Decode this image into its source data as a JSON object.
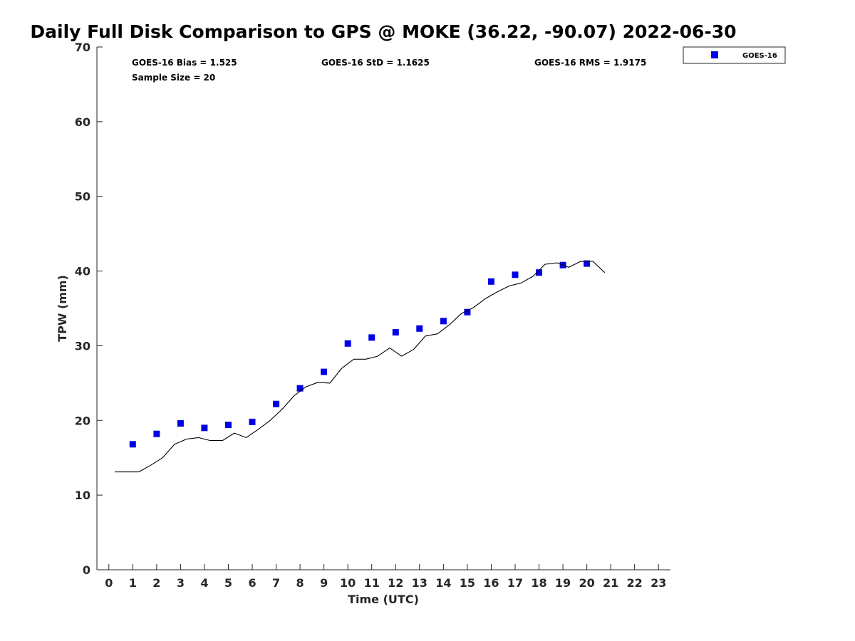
{
  "chart_data": {
    "type": "scatter",
    "title": "Daily Full Disk Comparison to GPS @ MOKE (36.22, -90.07) 2022-06-30",
    "xlabel": "Time (UTC)",
    "ylabel": "TPW (mm)",
    "xlim": [
      -0.5,
      23.5
    ],
    "ylim": [
      0,
      70
    ],
    "xticks": [
      0,
      1,
      2,
      3,
      4,
      5,
      6,
      7,
      8,
      9,
      10,
      11,
      12,
      13,
      14,
      15,
      16,
      17,
      18,
      19,
      20,
      21,
      22,
      23
    ],
    "yticks": [
      0,
      10,
      20,
      30,
      40,
      50,
      60,
      70
    ],
    "grid": false,
    "legend_position": "top-right, outside plot",
    "stats": {
      "bias": "GOES-16 Bias = 1.525",
      "std": "GOES-16 StD = 1.1625",
      "rms": "GOES-16 RMS = 1.9175",
      "sample": "Sample Size = 20"
    },
    "series": [
      {
        "name": "GOES-16",
        "marker": "square",
        "color": "#0000e6",
        "x": [
          1,
          2,
          3,
          4,
          5,
          6,
          7,
          8,
          9,
          10,
          11,
          12,
          13,
          14,
          15,
          16,
          17,
          18,
          19,
          20
        ],
        "y": [
          16.8,
          18.2,
          19.6,
          19.0,
          19.4,
          19.8,
          22.2,
          24.3,
          26.5,
          30.3,
          31.1,
          31.8,
          32.3,
          33.3,
          34.5,
          38.6,
          39.5,
          39.8,
          40.8,
          41.0
        ]
      },
      {
        "marker": "line",
        "color": "#000000",
        "x": [
          0.25,
          0.75,
          1.25,
          1.75,
          2.25,
          2.75,
          3.25,
          3.75,
          4.25,
          4.75,
          5.25,
          5.75,
          6.25,
          6.75,
          7.25,
          7.75,
          8.25,
          8.75,
          9.25,
          9.75,
          10.25,
          10.75,
          11.25,
          11.75,
          12.25,
          12.75,
          13.25,
          13.75,
          14.25,
          14.75,
          15.25,
          15.75,
          16.25,
          16.75,
          17.25,
          17.75,
          18.25,
          18.75,
          19.25,
          19.75,
          20.25,
          20.75
        ],
        "y": [
          13.1,
          13.1,
          13.1,
          14.0,
          15.0,
          16.8,
          17.5,
          17.7,
          17.3,
          17.3,
          18.3,
          17.7,
          18.8,
          20.0,
          21.5,
          23.3,
          24.5,
          25.1,
          25.0,
          27.0,
          28.2,
          28.2,
          28.6,
          29.7,
          28.6,
          29.5,
          31.3,
          31.6,
          32.8,
          34.3,
          35.1,
          36.3,
          37.2,
          38.0,
          38.4,
          39.3,
          40.9,
          41.1,
          40.5,
          41.3,
          41.3,
          39.8
        ]
      }
    ]
  }
}
